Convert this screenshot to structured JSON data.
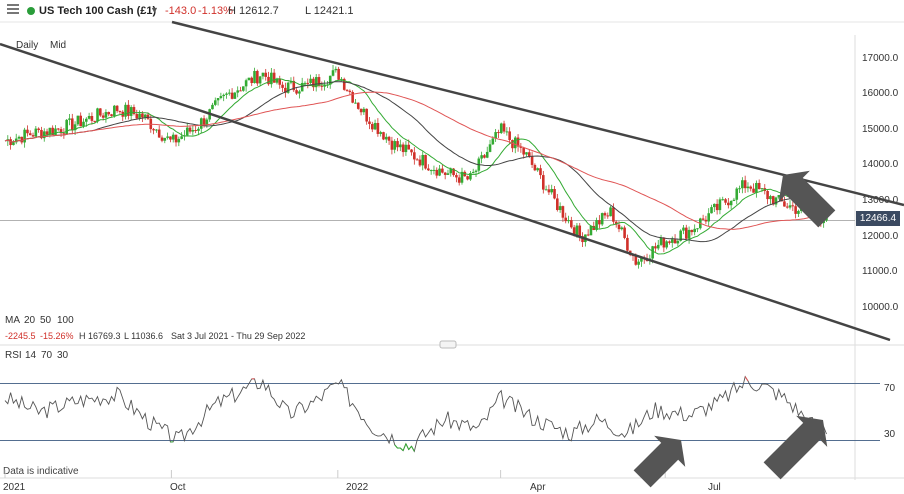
{
  "header": {
    "instrument": "US Tech 100 Cash (£1)",
    "change": "-143.0",
    "change_pct": "-1.13%",
    "high": "H 12612.7",
    "low": "L 12421.1",
    "icons": [
      "menu-icon",
      "market-status-dot-icon",
      "chevron-down-icon"
    ],
    "status_color": "#2a9d3a",
    "negative_color": "#d0302a"
  },
  "timeframes": [
    "Daily",
    "Mid"
  ],
  "price_box": "12466.4",
  "ma_legend": {
    "label": "MA",
    "periods": [
      "20",
      "50",
      "100"
    ],
    "colors": [
      "#33aa33",
      "#444444",
      "#e05555"
    ]
  },
  "info_line": {
    "change": "-2245.5",
    "change_pct": "-15.26%",
    "high": "H 16769.3",
    "low": "L 11036.6",
    "range": "Sat 3 Jul 2021 - Thu 29 Sep 2022"
  },
  "rsi_legend": {
    "label": "RSI",
    "periods": [
      "14",
      "70",
      "30"
    ]
  },
  "disclaimer": "Data is indicative",
  "colors": {
    "bull": "#33aa33",
    "bear": "#d0302a",
    "trendline": "#444444",
    "rsi_line": "#555555",
    "rsi_overbought": "#e05555",
    "rsi_oversold": "#33aa33",
    "level_line": "#3b5a80"
  },
  "chart_data": [
    {
      "type": "candlestick",
      "title": "US Tech 100 Cash (£1)",
      "x_ticks": [
        "2021",
        "Oct",
        "2022",
        "Apr",
        "Jul"
      ],
      "y_ticks": [
        "17000.0",
        "16000.0",
        "15000.0",
        "14000.0",
        "13000.0",
        "12000.0",
        "11000.0",
        "10000.0"
      ],
      "ylim": [
        9000,
        17500
      ],
      "last_price": 12466.4,
      "series": [
        {
          "name": "Close",
          "points": [
            [
              "2021-07-01",
              14700
            ],
            [
              "2021-07-15",
              14900
            ],
            [
              "2021-08-01",
              15050
            ],
            [
              "2021-08-15",
              15300
            ],
            [
              "2021-09-01",
              15600
            ],
            [
              "2021-09-15",
              15400
            ],
            [
              "2021-10-01",
              14650
            ],
            [
              "2021-10-15",
              15100
            ],
            [
              "2021-11-01",
              16000
            ],
            [
              "2021-11-20",
              16600
            ],
            [
              "2021-12-01",
              16200
            ],
            [
              "2021-12-15",
              16250
            ],
            [
              "2022-01-01",
              16600
            ],
            [
              "2022-01-15",
              15500
            ],
            [
              "2022-02-01",
              14600
            ],
            [
              "2022-02-15",
              14200
            ],
            [
              "2022-03-01",
              13800
            ],
            [
              "2022-03-15",
              13600
            ],
            [
              "2022-04-01",
              15000
            ],
            [
              "2022-04-15",
              14300
            ],
            [
              "2022-05-01",
              13000
            ],
            [
              "2022-05-15",
              12000
            ],
            [
              "2022-06-01",
              12700
            ],
            [
              "2022-06-15",
              11300
            ],
            [
              "2022-07-01",
              11900
            ],
            [
              "2022-07-15",
              12200
            ],
            [
              "2022-08-01",
              12900
            ],
            [
              "2022-08-15",
              13500
            ],
            [
              "2022-09-01",
              13000
            ],
            [
              "2022-09-29",
              12466
            ]
          ]
        },
        {
          "name": "MA 20"
        },
        {
          "name": "MA 50"
        },
        {
          "name": "MA 100"
        }
      ],
      "trendlines": 3
    },
    {
      "type": "line",
      "title": "RSI 14",
      "y_ticks": [
        "70",
        "30"
      ],
      "levels": [
        70,
        30
      ],
      "ylim": [
        15,
        85
      ],
      "series": [
        {
          "name": "RSI",
          "points": [
            [
              "2021-07-01",
              60
            ],
            [
              "2021-07-20",
              50
            ],
            [
              "2021-08-10",
              58
            ],
            [
              "2021-09-01",
              62
            ],
            [
              "2021-09-20",
              42
            ],
            [
              "2021-10-05",
              30
            ],
            [
              "2021-10-25",
              55
            ],
            [
              "2021-11-20",
              72
            ],
            [
              "2021-12-05",
              48
            ],
            [
              "2021-12-20",
              58
            ],
            [
              "2022-01-01",
              70
            ],
            [
              "2022-01-20",
              40
            ],
            [
              "2022-02-10",
              26
            ],
            [
              "2022-03-01",
              45
            ],
            [
              "2022-03-20",
              38
            ],
            [
              "2022-04-01",
              60
            ],
            [
              "2022-04-20",
              45
            ],
            [
              "2022-05-10",
              35
            ],
            [
              "2022-05-25",
              45
            ],
            [
              "2022-06-10",
              35
            ],
            [
              "2022-06-25",
              52
            ],
            [
              "2022-07-15",
              48
            ],
            [
              "2022-08-01",
              58
            ],
            [
              "2022-08-15",
              72
            ],
            [
              "2022-08-25",
              68
            ],
            [
              "2022-09-05",
              60
            ],
            [
              "2022-09-20",
              42
            ],
            [
              "2022-09-29",
              38
            ]
          ]
        }
      ]
    }
  ]
}
